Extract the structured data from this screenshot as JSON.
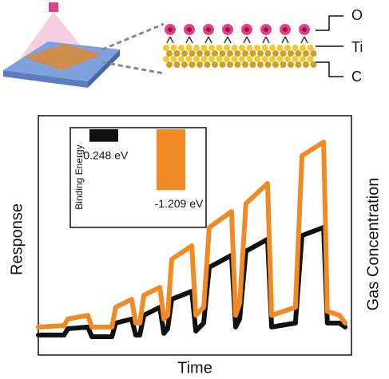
{
  "schematic": {
    "labels": [
      "O",
      "Ti",
      "C"
    ]
  },
  "chart_data": [
    {
      "type": "line",
      "x_label": "Time",
      "y_label": "Response",
      "y2_label": "Gas Concentration",
      "xlim": [
        0,
        100
      ],
      "ylim": [
        0,
        100
      ],
      "x": [
        0,
        8.2,
        9.4,
        15.8,
        17.1,
        23.5,
        24.7,
        29.8,
        31.1,
        32.4,
        33.7,
        38.8,
        40.1,
        41.3,
        42.6,
        49.0,
        50.3,
        52.8,
        54.6,
        61.7,
        63.0,
        64.3,
        66.3,
        73.2,
        74.5,
        82.1,
        84.2,
        91.1,
        92.3,
        96.2,
        98.0
      ],
      "series": [
        {
          "color": "#111111",
          "values": [
            8.5,
            8.5,
            11.2,
            11.9,
            7.8,
            7.8,
            13.6,
            15.3,
            8.5,
            8.5,
            16.9,
            20.3,
            9.2,
            11.2,
            23.7,
            27.1,
            10.2,
            13.6,
            37.3,
            42.4,
            11.9,
            15.3,
            44.1,
            49.2,
            11.9,
            13.6,
            50.8,
            54.2,
            13.6,
            13.6,
            11.9
          ]
        },
        {
          "color": "#f08a24",
          "values": [
            11.9,
            12.5,
            15.3,
            16.9,
            11.9,
            11.9,
            20.3,
            23.7,
            13.6,
            13.6,
            25.4,
            28.8,
            15.3,
            16.9,
            40.7,
            46.4,
            16.9,
            20.3,
            54.2,
            61.0,
            16.9,
            22.0,
            64.4,
            72.9,
            16.9,
            20.3,
            84.7,
            90.5,
            18.6,
            16.9,
            13.6
          ]
        }
      ]
    },
    {
      "type": "bar",
      "y_label": "Binding Energy",
      "ylim": [
        -1.3,
        0
      ],
      "values": [
        -0.248,
        -1.209
      ],
      "value_labels": [
        "-0.248 eV",
        "-1.209 eV"
      ],
      "colors": [
        "#111111",
        "#f08a24"
      ]
    }
  ]
}
